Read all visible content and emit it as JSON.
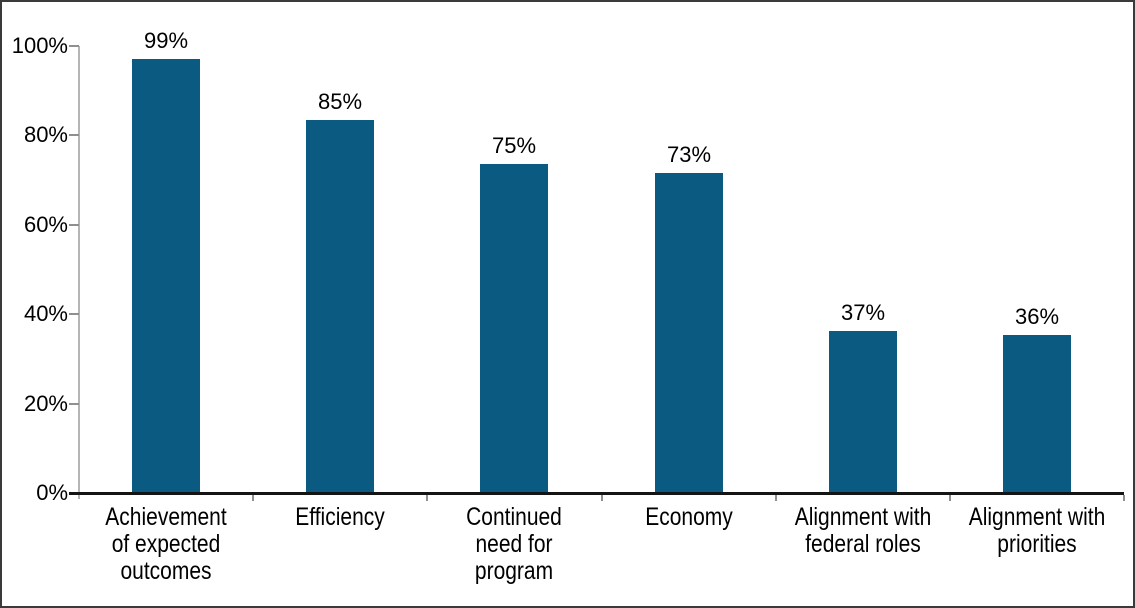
{
  "chart_data": {
    "type": "bar",
    "title": "",
    "categories": [
      "Achievement of expected outcomes",
      "Efficiency",
      "Continued need for program",
      "Economy",
      "Alignment with federal roles",
      "Alignment with priorities"
    ],
    "category_lines": [
      [
        "Achievement",
        "of expected",
        "outcomes"
      ],
      [
        "Efficiency"
      ],
      [
        "Continued",
        "need for",
        "program"
      ],
      [
        "Economy"
      ],
      [
        "Alignment with",
        "federal roles"
      ],
      [
        "Alignment with",
        "priorities"
      ]
    ],
    "values": [
      99,
      85,
      75,
      73,
      37,
      36
    ],
    "value_labels": [
      "99%",
      "85%",
      "75%",
      "73%",
      "37%",
      "36%"
    ],
    "xlabel": "",
    "ylabel": "",
    "y_axis": {
      "min": 0,
      "max": 100,
      "step": 20,
      "tick_labels": [
        "0%",
        "20%",
        "40%",
        "60%",
        "80%",
        "100%"
      ]
    },
    "grid": false,
    "legend": "none",
    "colors": {
      "bar": "#0a5a81",
      "x_axis": "#141414",
      "y_axis_line": "#b5b5b5",
      "tick": "#8f8f8f",
      "text": "#000000",
      "frame_border": "#3a3a3a",
      "background": "#ffffff"
    }
  }
}
